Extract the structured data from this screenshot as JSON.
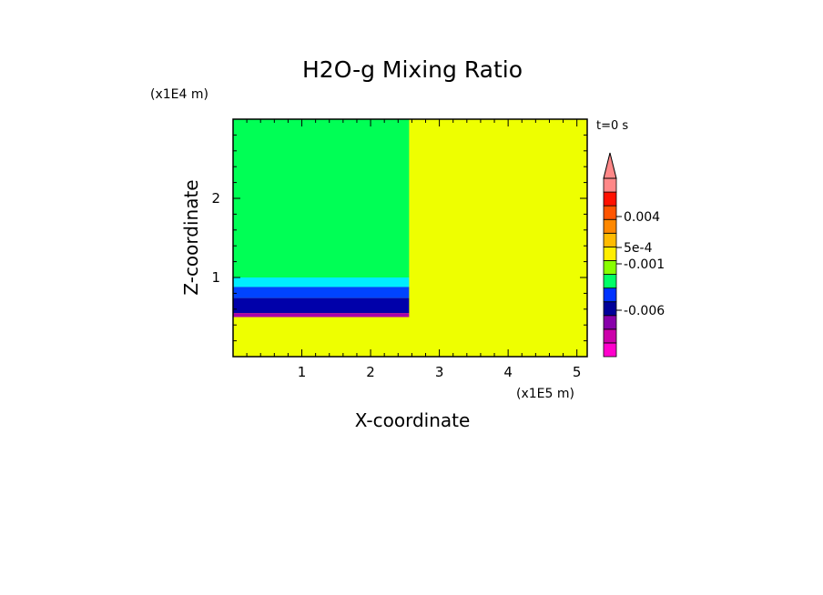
{
  "chart_data": {
    "type": "heatmap",
    "title": "H2O-g Mixing Ratio",
    "xlabel": "X-coordinate",
    "ylabel": "Z-coordinate",
    "x_scale_label": "(x1E5 m)",
    "y_scale_label": "(x1E4 m)",
    "time_label": "t=0 s",
    "xlim": [
      0,
      5.15
    ],
    "ylim": [
      0,
      3.0
    ],
    "x_ticks": [
      "1",
      "2",
      "3",
      "4",
      "5"
    ],
    "y_ticks": [
      "1",
      "2"
    ],
    "regions": [
      {
        "name": "background",
        "x": [
          0,
          5.15
        ],
        "y": [
          0,
          3.0
        ],
        "color": "#eeff00"
      },
      {
        "name": "upper-block",
        "x": [
          0,
          2.56
        ],
        "y": [
          1.0,
          3.0
        ],
        "color": "#00ff55"
      },
      {
        "name": "layer-cyan",
        "x": [
          0,
          2.56
        ],
        "y": [
          0.88,
          1.0
        ],
        "color": "#00eeff"
      },
      {
        "name": "layer-blue",
        "x": [
          0,
          2.56
        ],
        "y": [
          0.74,
          0.88
        ],
        "color": "#0044ff"
      },
      {
        "name": "layer-navy",
        "x": [
          0,
          2.56
        ],
        "y": [
          0.55,
          0.74
        ],
        "color": "#0000aa"
      },
      {
        "name": "layer-purple",
        "x": [
          0,
          2.56
        ],
        "y": [
          0.5,
          0.55
        ],
        "color": "#aa00aa"
      }
    ],
    "colorbar": {
      "bands": [
        "#ff00cc",
        "#cc00aa",
        "#8800aa",
        "#000099",
        "#0033ff",
        "#00ff66",
        "#88ff00",
        "#ffee00",
        "#ffbb00",
        "#ff8800",
        "#ff5500",
        "#ff1100",
        "#ff8888"
      ],
      "extend_color": "#ff8888",
      "labels": [
        "0.004",
        "5e-4",
        "-0.001",
        "-0.006"
      ],
      "label_values": [
        0.004,
        0.0005,
        -0.001,
        -0.006
      ]
    }
  }
}
